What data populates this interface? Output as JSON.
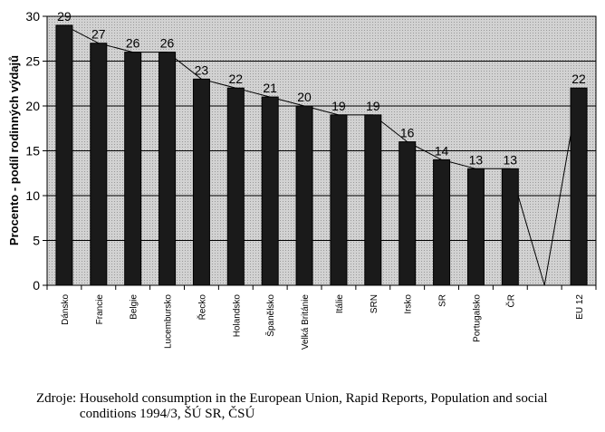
{
  "chart_data": {
    "type": "bar",
    "ylabel": "Procento - podíl rodinných výdajů",
    "xlabel": "",
    "ylim": [
      0,
      30
    ],
    "yticks": [
      0,
      5,
      10,
      15,
      20,
      25,
      30
    ],
    "grid": true,
    "categories": [
      "Dánsko",
      "Francie",
      "Belgie",
      "Lucembursko",
      "Řecko",
      "Holandsko",
      "Španělsko",
      "Velká Británie",
      "Itálie",
      "SRN",
      "Irsko",
      "SR",
      "Portugalsko",
      "ČR",
      "",
      "EU 12"
    ],
    "values": [
      29,
      27,
      26,
      26,
      23,
      22,
      21,
      20,
      19,
      19,
      16,
      14,
      13,
      13,
      null,
      22
    ],
    "data_labels": [
      "29",
      "27",
      "26",
      "26",
      "23",
      "22",
      "21",
      "20",
      "19",
      "19",
      "16",
      "14",
      "13",
      "13",
      "",
      "22"
    ]
  },
  "source": {
    "label": "Zdroje:",
    "text": "Household consumption in the European Union, Rapid Reports, Population and social conditions 1994/3, ŠÚ SR, ČSÚ"
  }
}
